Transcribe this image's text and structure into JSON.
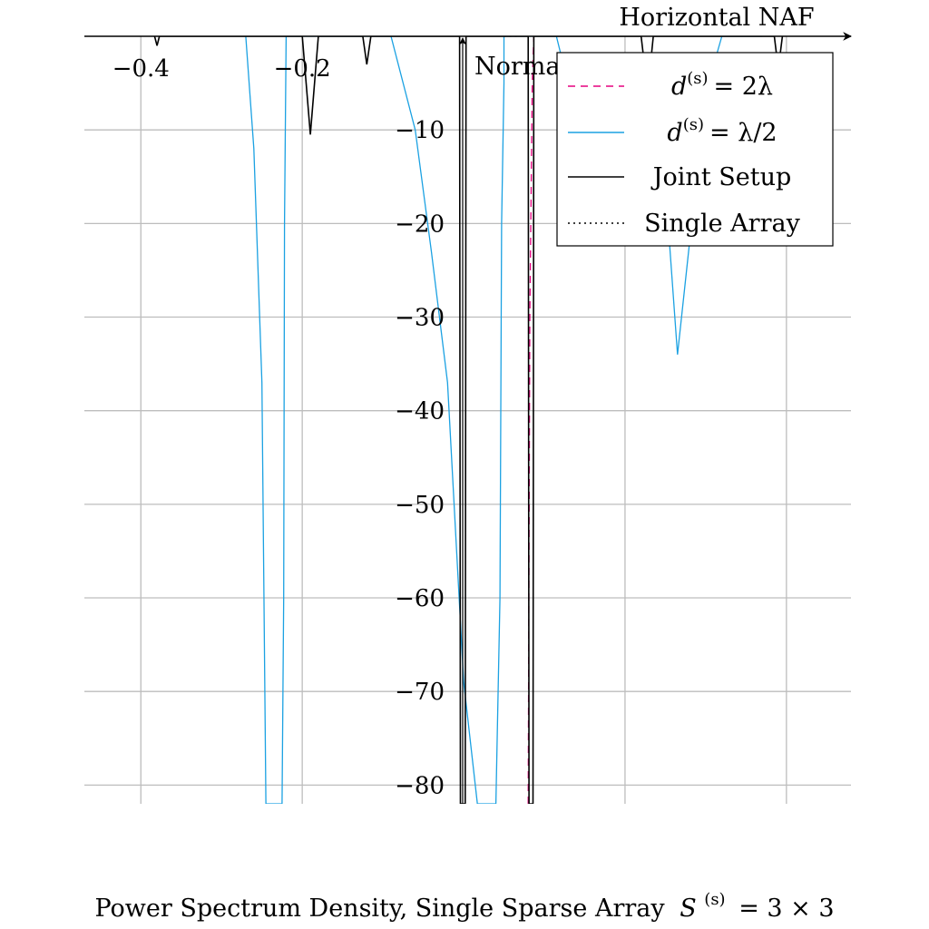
{
  "chart_data": {
    "type": "line",
    "title": "Horizontal NAF",
    "ylabel": "Normalized PSD, dB",
    "caption": {
      "text": "Power Spectrum Density, Single Sparse Array",
      "symbol": "S",
      "superscript": "(s)",
      "equation_rhs": "= 3 × 3"
    },
    "xlim": [
      -0.47,
      0.48
    ],
    "ylim": [
      -82,
      0
    ],
    "xticks": [
      -0.4,
      -0.2
    ],
    "xtick_labels": [
      "−0.4",
      "−0.2"
    ],
    "yticks": [
      -10,
      -20,
      -30,
      -40,
      -50,
      -60,
      -70,
      -80
    ],
    "ytick_labels": [
      "−10",
      "−20",
      "−30",
      "−40",
      "−50",
      "−60",
      "−70",
      "−80"
    ],
    "grid": true,
    "legend_position": "top-right",
    "series": [
      {
        "name": "d(s) = 2λ",
        "legend": {
          "symbol": "d",
          "superscript": "(s)",
          "rhs": "= 2λ"
        },
        "color": "#e6007e",
        "style": "dashed",
        "x": [
          0.08,
          0.082,
          0.085,
          0.087
        ],
        "y": [
          -82,
          -30,
          -5,
          0
        ]
      },
      {
        "name": "d(s) = λ/2",
        "legend": {
          "symbol": "d",
          "superscript": "(s)",
          "rhs": "= λ/2"
        },
        "color": "#1ba1e2",
        "style": "solid",
        "x": [
          -0.27,
          -0.26,
          -0.25,
          -0.245,
          -0.243,
          -0.243,
          -0.225,
          -0.223,
          -0.222,
          -0.22,
          -0.09,
          -0.06,
          -0.04,
          -0.02,
          0.0,
          0.017,
          0.019,
          0.04,
          0.045,
          0.047,
          0.05,
          0.05,
          0.115,
          0.135,
          0.155,
          0.17,
          0.2,
          0.22,
          0.235,
          0.255,
          0.265,
          0.28,
          0.295,
          0.31,
          0.32,
          0.33,
          0.37
        ],
        "y": [
          0,
          -12,
          -37,
          -82,
          -82,
          -82,
          -82,
          -60,
          -20,
          0,
          0,
          -10,
          -23,
          -37,
          -69,
          -82,
          -82,
          -82,
          -60,
          -20,
          -5,
          0,
          0,
          -7,
          -13,
          -15,
          -12,
          -6,
          -3,
          -22,
          -34,
          -22,
          -12,
          -3,
          0,
          0,
          0
        ]
      },
      {
        "name": "Joint Setup",
        "legend": {
          "rhs": "Joint Setup"
        },
        "color": "#000000",
        "style": "solid",
        "x": [
          -0.383,
          -0.38,
          -0.377,
          -0.2,
          -0.19,
          -0.18,
          -0.125,
          -0.12,
          -0.115,
          -0.005,
          -0.004,
          0.002,
          0.003,
          0.08,
          0.081,
          0.086,
          0.087,
          0.22,
          0.228,
          0.235,
          0.385,
          0.39,
          0.395
        ],
        "y": [
          0,
          -1,
          0,
          0,
          -10.5,
          0,
          0,
          -3,
          0,
          0,
          -82,
          -82,
          0,
          0,
          -82,
          -82,
          0,
          0,
          -6,
          0,
          0,
          -3.5,
          0
        ]
      },
      {
        "name": "Single Array",
        "legend": {
          "rhs": "Single Array"
        },
        "color": "#000000",
        "style": "dotted",
        "x": [
          0.05,
          0.06,
          0.07
        ],
        "y": [
          0,
          0,
          0
        ]
      }
    ]
  }
}
